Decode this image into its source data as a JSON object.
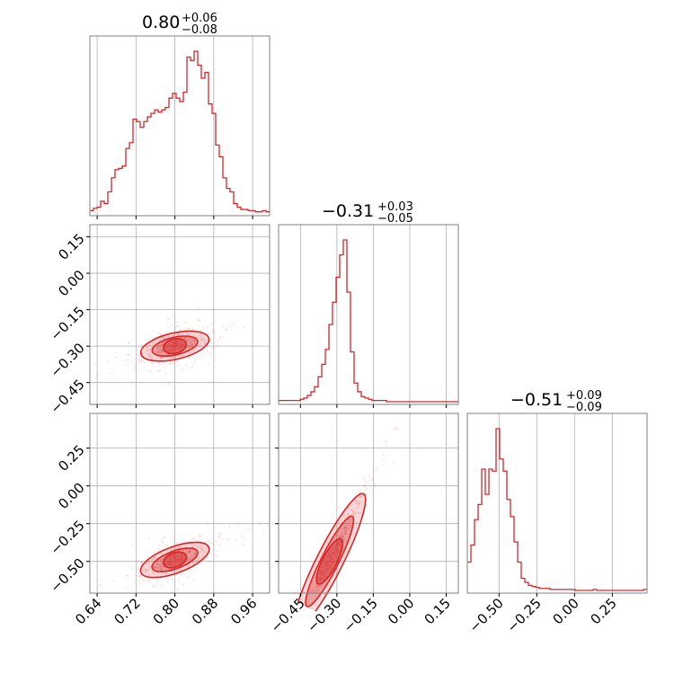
{
  "chart_data": {
    "type": "corner",
    "color": "#d62728",
    "parameters": [
      {
        "median": "0.80",
        "plus": "+0.06",
        "minus": "−0.08",
        "range": [
          0.625,
          0.995
        ],
        "ticks": [
          0.64,
          0.72,
          0.8,
          0.88,
          0.96
        ],
        "tick_labels": [
          "0.64",
          "0.72",
          "0.80",
          "0.88",
          "0.96"
        ]
      },
      {
        "median": "−0.31",
        "plus": "+0.03",
        "minus": "−0.05",
        "range": [
          -0.54,
          0.2
        ],
        "ticks": [
          -0.45,
          -0.3,
          -0.15,
          0.0,
          0.15
        ],
        "tick_labels": [
          "−0.45",
          "−0.30",
          "−0.15",
          "0.00",
          "0.15"
        ]
      },
      {
        "median": "−0.51",
        "plus": "+0.09",
        "minus": "−0.09",
        "range": [
          -0.71,
          0.48
        ],
        "ticks": [
          -0.5,
          -0.25,
          0.0,
          0.25
        ],
        "tick_labels": [
          "−0.50",
          "−0.25",
          "0.00",
          "0.25"
        ]
      }
    ],
    "hist_1d": [
      {
        "edges_range": [
          0.625,
          0.995
        ],
        "bins": 50,
        "counts": [
          2,
          4,
          5,
          10,
          8,
          18,
          30,
          37,
          38,
          40,
          55,
          60,
          80,
          78,
          73,
          78,
          82,
          85,
          88,
          86,
          88,
          90,
          98,
          102,
          98,
          95,
          103,
          133,
          130,
          138,
          126,
          115,
          120,
          93,
          85,
          58,
          48,
          30,
          21,
          18,
          8,
          5,
          3,
          3,
          2,
          2,
          1,
          1,
          2,
          1
        ]
      },
      {
        "edges_range": [
          -0.54,
          0.2
        ],
        "bins": 50,
        "counts": [
          1,
          1,
          1,
          1,
          1,
          1,
          2,
          3,
          5,
          8,
          12,
          20,
          30,
          42,
          62,
          80,
          100,
          118,
          130,
          88,
          40,
          15,
          8,
          4,
          3,
          2,
          1,
          1,
          1,
          1,
          0,
          0,
          0,
          0,
          0,
          0,
          0,
          0,
          0,
          0,
          0,
          0,
          0,
          0,
          0,
          0,
          0,
          0,
          0,
          0
        ]
      },
      {
        "edges_range": [
          -0.71,
          0.48
        ],
        "bins": 50,
        "counts": [
          28,
          45,
          70,
          85,
          120,
          95,
          120,
          118,
          160,
          130,
          118,
          90,
          73,
          48,
          28,
          12,
          8,
          5,
          4,
          3,
          2,
          2,
          2,
          1,
          1,
          1,
          1,
          1,
          1,
          1,
          0,
          0,
          0,
          0,
          0,
          1,
          0,
          0,
          0,
          0,
          0,
          0,
          0,
          0,
          0,
          0,
          0,
          0,
          0,
          1
        ]
      }
    ],
    "pairs": [
      {
        "x": 0,
        "y": 1,
        "slope": 0.45,
        "center": [
          0.8,
          -0.3
        ]
      },
      {
        "x": 0,
        "y": 2,
        "slope": 1.18,
        "center": [
          0.8,
          -0.49
        ]
      },
      {
        "x": 1,
        "y": 2,
        "slope": 3.2,
        "center": [
          -0.33,
          -0.5
        ]
      }
    ],
    "grid": true
  }
}
